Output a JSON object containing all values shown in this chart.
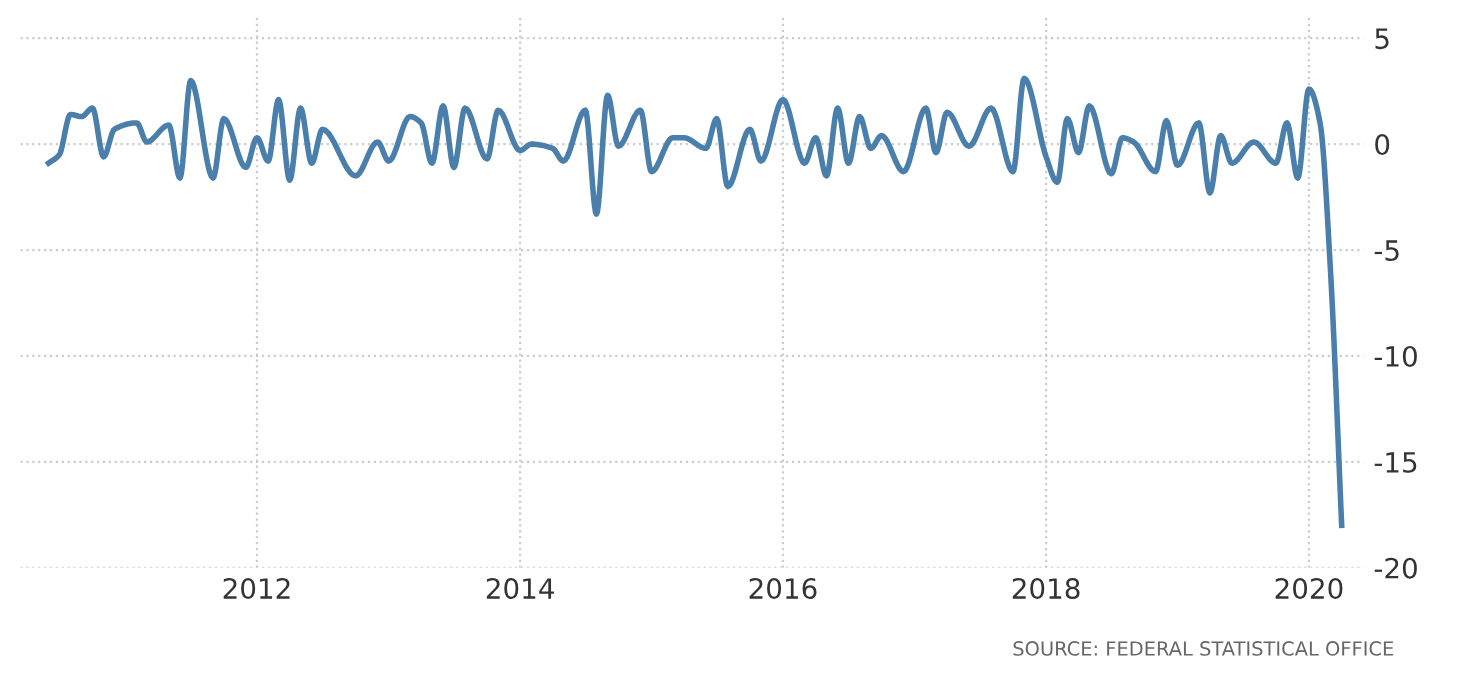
{
  "chart_data": {
    "type": "line",
    "x": [
      "2010-06",
      "2010-07",
      "2010-08",
      "2010-09",
      "2010-10",
      "2010-11",
      "2010-12",
      "2011-02",
      "2011-03",
      "2011-05",
      "2011-06",
      "2011-07",
      "2011-09",
      "2011-10",
      "2011-12",
      "2012-01",
      "2012-02",
      "2012-03",
      "2012-04",
      "2012-05",
      "2012-06",
      "2012-07",
      "2012-10",
      "2012-12",
      "2013-01",
      "2013-03",
      "2013-04",
      "2013-05",
      "2013-06",
      "2013-07",
      "2013-08",
      "2013-10",
      "2013-11",
      "2014-01",
      "2014-02",
      "2014-04",
      "2014-05",
      "2014-07",
      "2014-08",
      "2014-09",
      "2014-10",
      "2014-12",
      "2015-01",
      "2015-03",
      "2015-04",
      "2015-06",
      "2015-07",
      "2015-08",
      "2015-10",
      "2015-11",
      "2016-01",
      "2016-03",
      "2016-04",
      "2016-05",
      "2016-06",
      "2016-07",
      "2016-08",
      "2016-09",
      "2016-10",
      "2016-12",
      "2017-02",
      "2017-03",
      "2017-04",
      "2017-06",
      "2017-08",
      "2017-10",
      "2017-11",
      "2018-01",
      "2018-02",
      "2018-03",
      "2018-04",
      "2018-05",
      "2018-07",
      "2018-08",
      "2018-09",
      "2018-11",
      "2018-12",
      "2019-01",
      "2019-03",
      "2019-04",
      "2019-05",
      "2019-06",
      "2019-08",
      "2019-10",
      "2019-11",
      "2019-12",
      "2020-01",
      "2020-02",
      "2020-03",
      "2020-04"
    ],
    "series": [
      {
        "color": "#4a7fab",
        "values": [
          -0.9,
          -0.5,
          1.4,
          1.3,
          1.7,
          -0.6,
          0.7,
          1.0,
          0.1,
          0.9,
          -1.6,
          3.0,
          -1.6,
          1.2,
          -1.1,
          0.3,
          -0.8,
          2.1,
          -1.7,
          1.7,
          -0.9,
          0.7,
          -1.5,
          0.1,
          -0.8,
          1.3,
          1.0,
          -0.9,
          1.8,
          -1.1,
          1.7,
          -0.7,
          1.6,
          -0.3,
          0.0,
          -0.2,
          -0.8,
          1.6,
          -3.3,
          2.3,
          -0.1,
          1.6,
          -1.3,
          0.3,
          0.3,
          -0.2,
          1.2,
          -2.0,
          0.7,
          -0.8,
          2.1,
          -0.9,
          0.3,
          -1.5,
          1.7,
          -0.9,
          1.3,
          -0.2,
          0.4,
          -1.3,
          1.7,
          -0.4,
          1.5,
          -0.1,
          1.7,
          -1.3,
          3.1,
          -0.6,
          -1.8,
          1.2,
          -0.4,
          1.8,
          -1.4,
          0.3,
          0.1,
          -1.3,
          1.1,
          -1.0,
          1.0,
          -2.3,
          0.4,
          -0.9,
          0.1,
          -0.9,
          1.0,
          -1.6,
          2.6,
          1.0,
          -6.0,
          -18.0
        ]
      }
    ],
    "xlim": [
      "2010-03-15",
      "2020-06-01"
    ],
    "xticks": [
      {
        "value": "2012-01",
        "label": "2012"
      },
      {
        "value": "2014-01",
        "label": "2014"
      },
      {
        "value": "2016-01",
        "label": "2016"
      },
      {
        "value": "2018-01",
        "label": "2018"
      },
      {
        "value": "2020-01",
        "label": "2020"
      }
    ],
    "ylim": [
      -20,
      6
    ],
    "yticks": [
      -20,
      -15,
      -10,
      -5,
      0,
      5
    ],
    "grid": true,
    "annotations": [
      "SOURCE: FEDERAL STATISTICAL OFFICE"
    ]
  }
}
